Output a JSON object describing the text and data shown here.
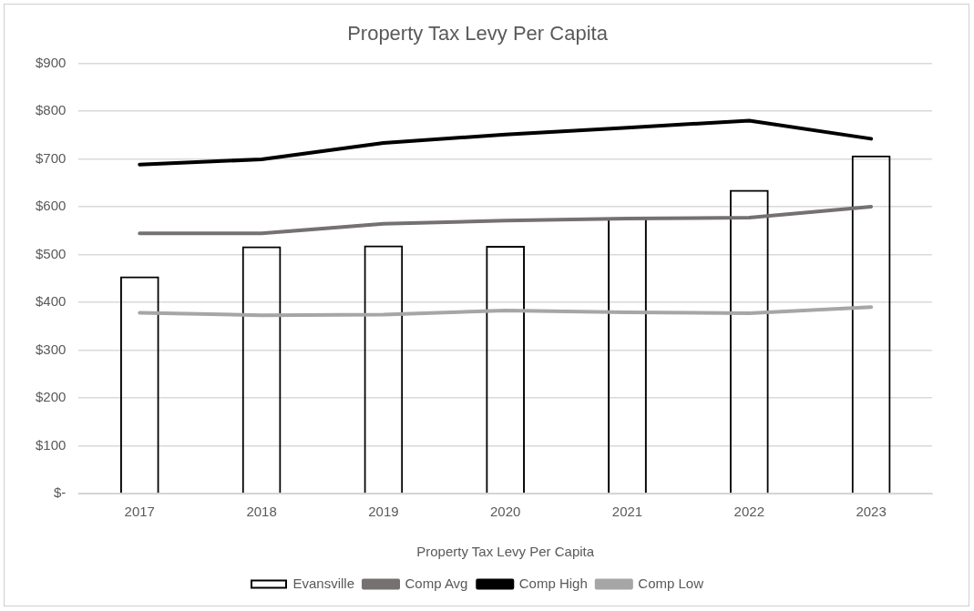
{
  "chart_data": {
    "type": "bar",
    "title": "Property Tax Levy Per Capita",
    "xlabel": "Property Tax Levy Per Capita",
    "categories": [
      "2017",
      "2018",
      "2019",
      "2020",
      "2021",
      "2022",
      "2023"
    ],
    "series": [
      {
        "name": "Evansville",
        "color": "#000000",
        "values": [
          454,
          517,
          519,
          518,
          577,
          635,
          707
        ]
      },
      {
        "name": "Comp Avg",
        "type": "line",
        "color": "#767171",
        "values": [
          544,
          544,
          564,
          571,
          575,
          577,
          600
        ]
      },
      {
        "name": "Comp High",
        "type": "line",
        "color": "#000000",
        "values": [
          688,
          699,
          733,
          751,
          765,
          780,
          742
        ]
      },
      {
        "name": "Comp Low",
        "type": "line",
        "color": "#a6a6a6",
        "values": [
          378,
          373,
          374,
          383,
          379,
          377,
          390
        ]
      }
    ],
    "ylim": [
      0,
      900
    ],
    "yticks": [
      {
        "value": 0,
        "label": "$-"
      },
      {
        "value": 100,
        "label": "$100"
      },
      {
        "value": 200,
        "label": "$200"
      },
      {
        "value": 300,
        "label": "$300"
      },
      {
        "value": 400,
        "label": "$400"
      },
      {
        "value": 500,
        "label": "$500"
      },
      {
        "value": 600,
        "label": "$600"
      },
      {
        "value": 700,
        "label": "$700"
      },
      {
        "value": 800,
        "label": "$800"
      },
      {
        "value": 900,
        "label": "$900"
      }
    ],
    "grid": "y",
    "legend": "bottom",
    "marker": "none",
    "line_style": "solid"
  }
}
